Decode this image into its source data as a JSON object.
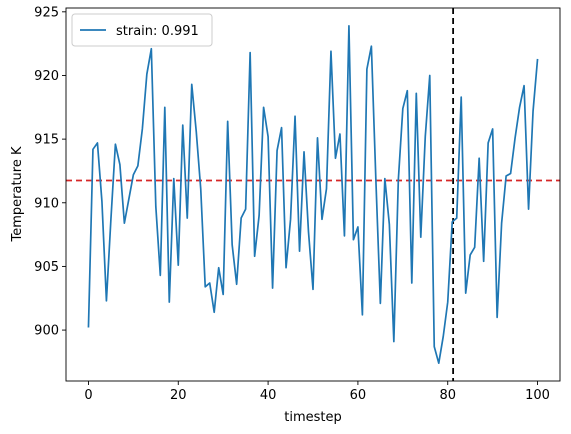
{
  "chart_data": {
    "type": "line",
    "title": "",
    "xlabel": "timestep",
    "ylabel": "Temperature K",
    "xlim": [
      -5,
      105
    ],
    "ylim": [
      896,
      925.3
    ],
    "xticks": [
      0,
      20,
      40,
      60,
      80,
      100
    ],
    "yticks": [
      900,
      905,
      910,
      915,
      920,
      925
    ],
    "grid": false,
    "legend_position": "top-left",
    "series": [
      {
        "name": "strain: 0.991",
        "color": "#1f77b4",
        "x": [
          0,
          1,
          2,
          3,
          4,
          5,
          6,
          7,
          8,
          9,
          10,
          11,
          12,
          13,
          14,
          15,
          16,
          17,
          18,
          19,
          20,
          21,
          22,
          23,
          24,
          25,
          26,
          27,
          28,
          29,
          30,
          31,
          32,
          33,
          34,
          35,
          36,
          37,
          38,
          39,
          40,
          41,
          42,
          43,
          44,
          45,
          46,
          47,
          48,
          49,
          50,
          51,
          52,
          53,
          54,
          55,
          56,
          57,
          58,
          59,
          60,
          61,
          62,
          63,
          64,
          65,
          66,
          67,
          68,
          69,
          70,
          71,
          72,
          73,
          74,
          75,
          76,
          77,
          78,
          79,
          80,
          81,
          82,
          83,
          84,
          85,
          86,
          87,
          88,
          89,
          90,
          91,
          92,
          93,
          94,
          95,
          96,
          97,
          98,
          99,
          100
        ],
        "y": [
          900.2,
          914.2,
          914.7,
          910.1,
          902.3,
          908.7,
          914.6,
          913.0,
          908.4,
          910.3,
          912.2,
          912.9,
          915.8,
          920.1,
          922.1,
          909.7,
          904.3,
          917.5,
          902.2,
          911.9,
          905.1,
          916.1,
          908.8,
          919.3,
          915.6,
          911.1,
          903.4,
          903.7,
          901.4,
          904.9,
          902.8,
          916.4,
          906.7,
          903.6,
          908.8,
          909.5,
          921.8,
          905.8,
          909.0,
          917.5,
          915.2,
          903.3,
          914.1,
          915.9,
          904.9,
          908.7,
          916.8,
          906.2,
          914.0,
          907.7,
          903.2,
          915.1,
          908.7,
          911.1,
          921.9,
          913.5,
          915.4,
          907.4,
          923.9,
          907.1,
          908.1,
          901.2,
          920.5,
          922.3,
          911.8,
          902.1,
          911.9,
          908.3,
          899.1,
          911.8,
          917.4,
          918.8,
          903.7,
          918.6,
          907.3,
          915.2,
          920.0,
          898.7,
          897.4,
          899.5,
          902.2,
          908.5,
          908.8,
          918.3,
          902.9,
          905.9,
          906.5,
          913.5,
          905.4,
          914.7,
          915.8,
          901.0,
          908.4,
          912.1,
          912.3,
          915.1,
          917.5,
          919.2,
          909.5,
          917.2,
          921.3
        ]
      }
    ],
    "reference_lines": [
      {
        "orientation": "horizontal",
        "value": 911.75,
        "color": "#d62728",
        "style": "dashed"
      },
      {
        "orientation": "vertical",
        "value": 81.2,
        "color": "#000000",
        "style": "dashed"
      }
    ]
  }
}
